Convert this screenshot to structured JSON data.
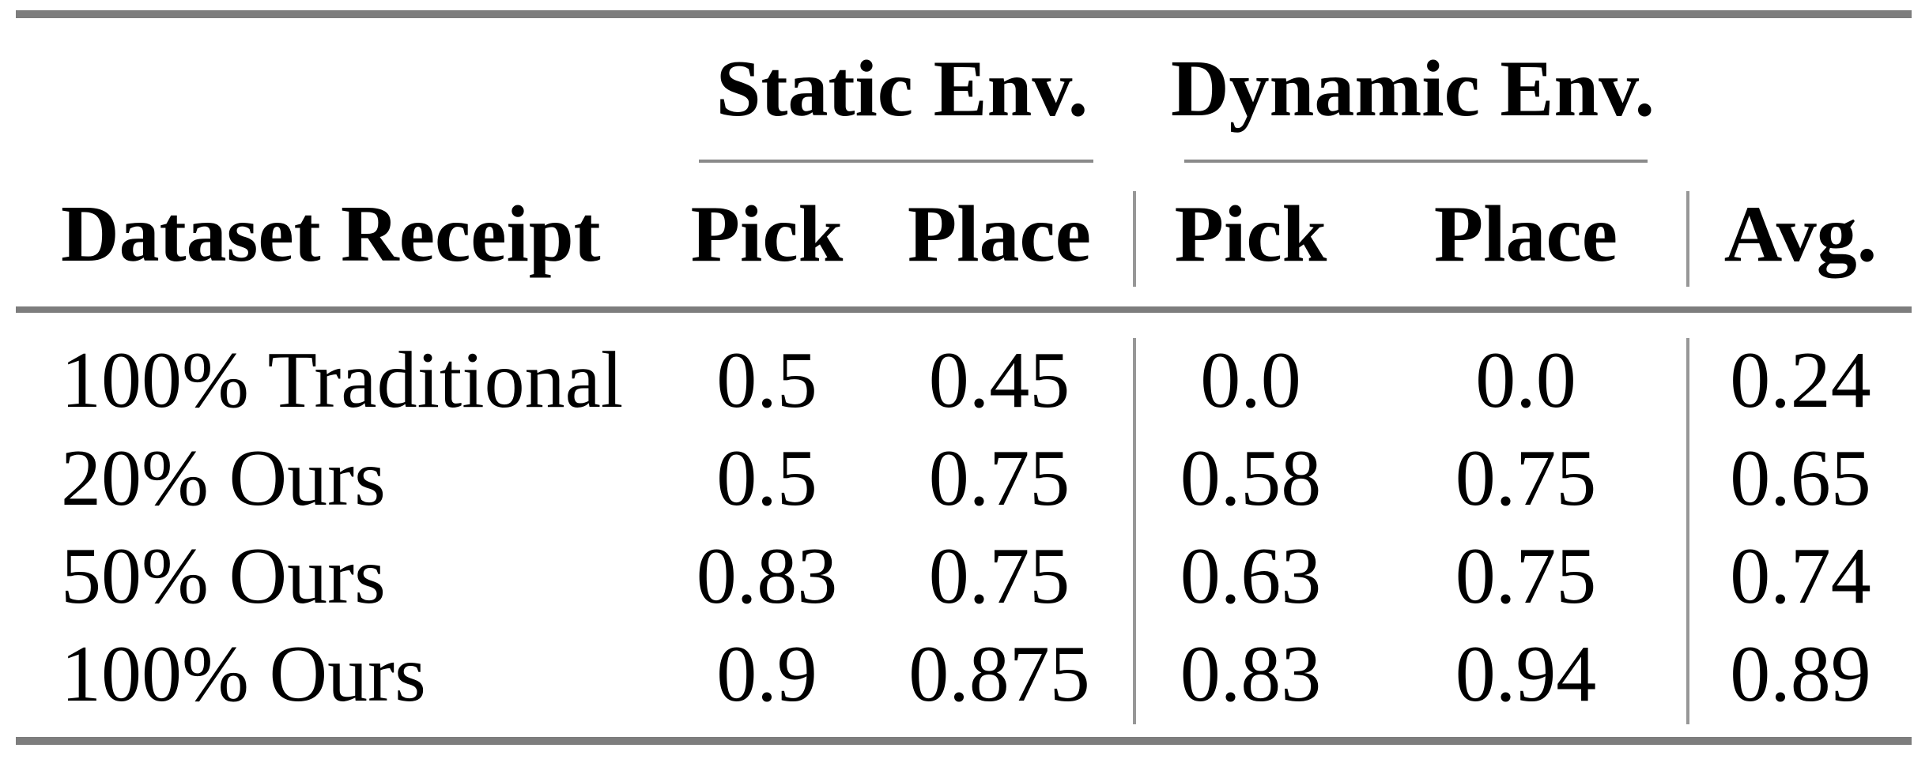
{
  "table": {
    "row_header": "Dataset Receipt",
    "groups": [
      {
        "label": "Static Env.",
        "columns": [
          "Pick",
          "Place"
        ]
      },
      {
        "label": "Dynamic Env.",
        "columns": [
          "Pick",
          "Place"
        ]
      }
    ],
    "avg_header": "Avg.",
    "rows": [
      {
        "label": "100% Traditional",
        "values": [
          "0.5",
          "0.45",
          "0.0",
          "0.0",
          "0.24"
        ]
      },
      {
        "label": "20% Ours",
        "values": [
          "0.5",
          "0.75",
          "0.58",
          "0.75",
          "0.65"
        ]
      },
      {
        "label": "50% Ours",
        "values": [
          "0.83",
          "0.75",
          "0.63",
          "0.75",
          "0.74"
        ]
      },
      {
        "label": "100% Ours",
        "values": [
          "0.9",
          "0.875",
          "0.83",
          "0.94",
          "0.89"
        ]
      }
    ]
  },
  "colors": {
    "background": "#ffffff",
    "text": "#000000",
    "rule_thick": "#7d7d7d",
    "rule_thin": "#8a8a8a",
    "vertical_bar": "#979797"
  }
}
